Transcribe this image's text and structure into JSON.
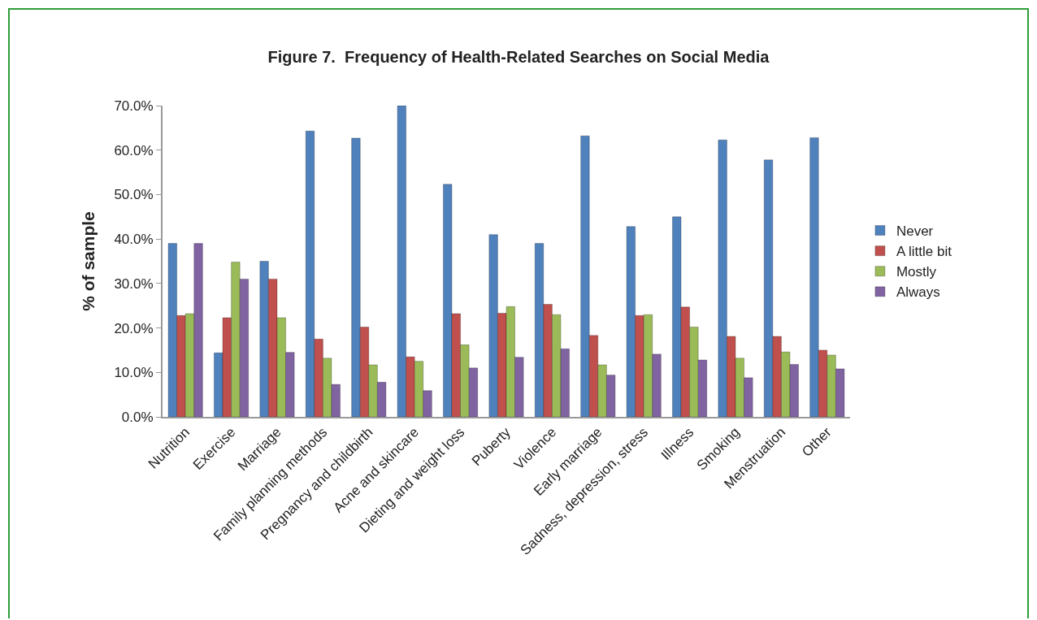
{
  "chart_data": {
    "type": "bar",
    "title": "Figure 7.  Frequency of Health-Related Searches on Social Media",
    "ylabel": "% of sample",
    "categories": [
      "Nutrition",
      "Exercise",
      "Marriage",
      "Family planning methods",
      "Pregnancy and childbirth",
      "Acne and skincare",
      "Dieting and weight loss",
      "Puberty",
      "Violence",
      "Early marriage",
      "Sadness, depression, stress",
      "Illness",
      "Smoking",
      "Menstruation",
      "Other"
    ],
    "series": [
      {
        "name": "Never",
        "color": "#4f81bd",
        "values": [
          39,
          14.4,
          35,
          64.3,
          62.7,
          70,
          52.3,
          41,
          39,
          63.2,
          42.8,
          45,
          62.3,
          57.8,
          62.8
        ]
      },
      {
        "name": "A little bit",
        "color": "#c0504d",
        "values": [
          22.8,
          22.3,
          31,
          17.5,
          20.2,
          13.5,
          23.2,
          23.3,
          25.3,
          18.3,
          22.8,
          24.7,
          18.1,
          18.1,
          15
        ]
      },
      {
        "name": "Mostly",
        "color": "#9bbb59",
        "values": [
          23.2,
          34.8,
          22.3,
          13.2,
          11.7,
          12.5,
          16.2,
          24.8,
          23,
          11.7,
          23,
          20.2,
          13.2,
          14.6,
          13.9
        ]
      },
      {
        "name": "Always",
        "color": "#8064a2",
        "values": [
          39,
          31,
          14.5,
          7.3,
          7.8,
          5.9,
          11,
          13.4,
          15.3,
          9.4,
          14.1,
          12.8,
          8.8,
          11.8,
          10.8
        ]
      }
    ],
    "ylim": [
      0,
      70
    ],
    "yticks": [
      {
        "value": 0,
        "label": "0.0%"
      },
      {
        "value": 10,
        "label": "10.0%"
      },
      {
        "value": 20,
        "label": "20.0%"
      },
      {
        "value": 30,
        "label": "30.0%"
      },
      {
        "value": 40,
        "label": "40.0%"
      },
      {
        "value": 50,
        "label": "50.0%"
      },
      {
        "value": 60,
        "label": "60.0%"
      },
      {
        "value": 70,
        "label": "70.0%"
      }
    ],
    "grid": false,
    "legend": "right"
  }
}
